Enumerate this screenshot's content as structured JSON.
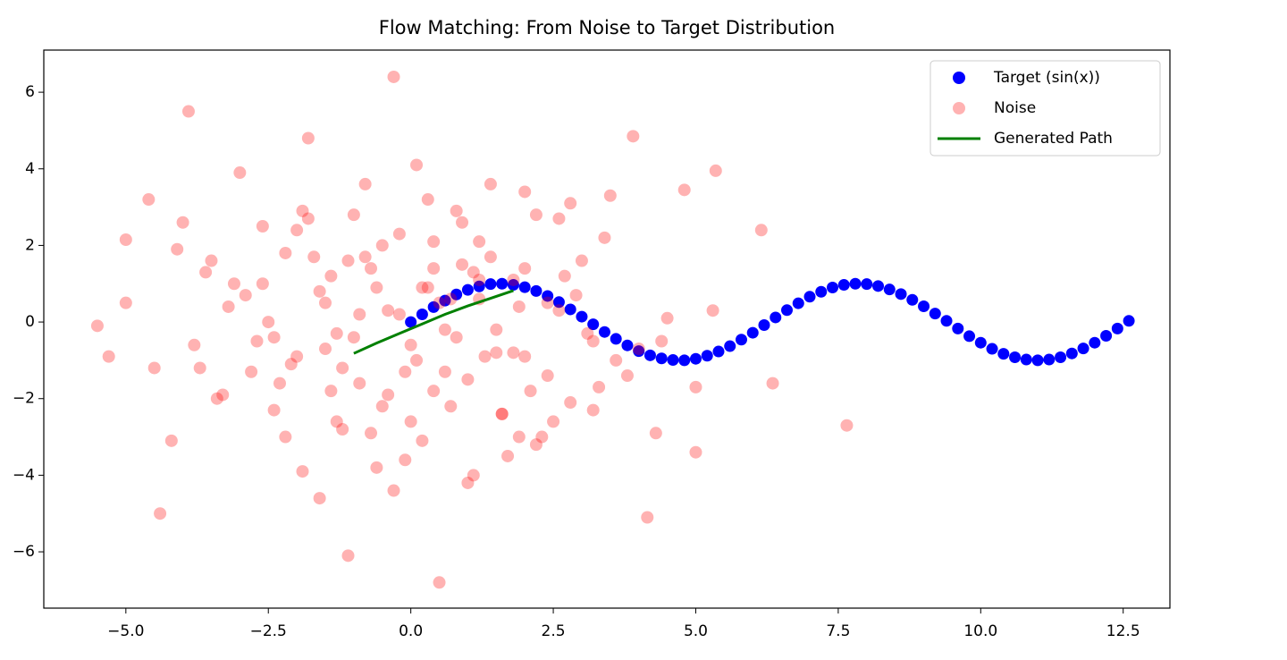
{
  "chart_data": {
    "type": "scatter",
    "title": "Flow Matching: From Noise to Target Distribution",
    "xlim": [
      -6.44,
      13.32
    ],
    "ylim": [
      -7.47,
      7.1
    ],
    "xticks": [
      {
        "value": -5,
        "label": "−5.0"
      },
      {
        "value": -2.5,
        "label": "−2.5"
      },
      {
        "value": 0,
        "label": "0.0"
      },
      2.5,
      {
        "value": 5,
        "label": "5.0"
      },
      7.5,
      {
        "value": 10,
        "label": "10.0"
      },
      12.5
    ],
    "yticks": [
      {
        "value": -6,
        "label": "−6"
      },
      {
        "value": -4,
        "label": "−4"
      },
      {
        "value": -2,
        "label": "−2"
      },
      0,
      2,
      4,
      6
    ],
    "grid": false,
    "legend": "upper right",
    "series": [
      {
        "name": "Target (sin(x))",
        "type": "scatter",
        "color": "#0000ff",
        "alpha": 1,
        "x": [
          0,
          0.2,
          0.4,
          0.6,
          0.8,
          1.0,
          1.2,
          1.4,
          1.6,
          1.8,
          2.0,
          2.2,
          2.4,
          2.6,
          2.8,
          3.0,
          3.2,
          3.4,
          3.6,
          3.8,
          4.0,
          4.2,
          4.4,
          4.6,
          4.8,
          5.0,
          5.2,
          5.4,
          5.6,
          5.8,
          6.0,
          6.2,
          6.4,
          6.6,
          6.8,
          7.0,
          7.2,
          7.4,
          7.6,
          7.8,
          8.0,
          8.2,
          8.4,
          8.6,
          8.8,
          9.0,
          9.2,
          9.4,
          9.6,
          9.8,
          10.0,
          10.2,
          10.4,
          10.6,
          10.8,
          11.0,
          11.2,
          11.4,
          11.6,
          11.8,
          12.0,
          12.2,
          12.4,
          12.6
        ],
        "y": [
          0,
          0.2,
          0.39,
          0.56,
          0.72,
          0.84,
          0.93,
          0.99,
          1.0,
          0.97,
          0.91,
          0.81,
          0.68,
          0.52,
          0.33,
          0.14,
          -0.06,
          -0.26,
          -0.44,
          -0.61,
          -0.76,
          -0.87,
          -0.95,
          -0.99,
          -1.0,
          -0.96,
          -0.88,
          -0.77,
          -0.63,
          -0.46,
          -0.28,
          -0.08,
          0.12,
          0.31,
          0.49,
          0.66,
          0.79,
          0.9,
          0.97,
          1.0,
          0.99,
          0.94,
          0.85,
          0.73,
          0.58,
          0.41,
          0.22,
          0.03,
          -0.17,
          -0.37,
          -0.54,
          -0.7,
          -0.83,
          -0.92,
          -0.98,
          -1.0,
          -0.98,
          -0.92,
          -0.82,
          -0.69,
          -0.54,
          -0.36,
          -0.17,
          0.03
        ]
      },
      {
        "name": "Noise",
        "type": "scatter",
        "color": "#ff0000",
        "alpha": 0.3,
        "x": [
          -5.5,
          -5.3,
          -3.9,
          -0.3,
          0.5,
          -1.1,
          7.65,
          6.15,
          6.35,
          4.15,
          5.35,
          3.9,
          -4.4,
          -4.6,
          -5.0,
          -5.0,
          4.8,
          5.0,
          5.0,
          5.3,
          -4.2,
          -4.0,
          -3.8,
          -3.6,
          -3.4,
          -3.2,
          -3.0,
          -2.8,
          -2.6,
          -2.4,
          -2.2,
          -2.0,
          -1.8,
          -1.6,
          -1.4,
          -1.2,
          -1.0,
          -0.8,
          -0.6,
          -0.4,
          -0.2,
          0.0,
          0.2,
          0.4,
          0.6,
          0.8,
          1.0,
          1.2,
          1.4,
          1.6,
          1.8,
          2.0,
          2.2,
          2.4,
          2.6,
          2.8,
          3.0,
          3.2,
          3.4,
          3.6,
          -2.1,
          -1.7,
          -1.3,
          -0.9,
          -0.5,
          -0.1,
          0.3,
          0.7,
          1.1,
          1.5,
          1.9,
          2.3,
          2.7,
          3.1,
          -2.5,
          -1.5,
          -0.7,
          0.1,
          0.9,
          1.7,
          -3.5,
          -2.9,
          -2.3,
          -1.9,
          -1.1,
          -0.3,
          0.5,
          1.3,
          2.1,
          2.9,
          -1.6,
          -1.2,
          -0.8,
          -0.4,
          0.0,
          0.4,
          0.8,
          1.2,
          1.6,
          2.0,
          -2.7,
          -2.0,
          -1.4,
          -0.6,
          0.2,
          1.0,
          1.8,
          2.6,
          3.3,
          4.0,
          -1.9,
          -1.0,
          -0.2,
          0.6,
          1.4,
          2.2,
          -3.1,
          -2.4,
          3.5,
          4.3,
          -4.5,
          -4.1,
          -3.7,
          4.4,
          4.5,
          3.8,
          -0.9,
          0.3,
          1.1,
          2.5,
          -1.5,
          -0.5,
          0.7,
          1.5,
          -2.6,
          2.8,
          -3.3,
          3.2,
          -0.1,
          0.9,
          -1.3,
          -0.7,
          0.1,
          1.9,
          2.4,
          -2.2,
          -1.8,
          0.4,
          1.2,
          2.0
        ],
        "y": [
          -0.1,
          -0.9,
          5.5,
          6.4,
          -6.8,
          -6.1,
          -2.7,
          2.4,
          -1.6,
          -5.1,
          3.95,
          4.85,
          -5.0,
          3.2,
          2.15,
          0.5,
          3.45,
          -1.7,
          -3.4,
          0.3,
          -3.1,
          2.6,
          -0.6,
          1.3,
          -2.0,
          0.4,
          3.9,
          -1.3,
          2.5,
          -2.3,
          1.8,
          -0.9,
          4.8,
          -4.6,
          1.2,
          -2.8,
          -0.4,
          3.6,
          0.9,
          -1.9,
          2.3,
          -0.6,
          -3.1,
          1.4,
          -0.2,
          2.9,
          -1.5,
          0.6,
          3.6,
          -2.4,
          1.1,
          -0.9,
          2.8,
          -1.4,
          0.3,
          -2.1,
          1.6,
          -0.5,
          2.2,
          -1.0,
          -1.1,
          1.7,
          -2.6,
          0.2,
          2.0,
          -1.3,
          0.9,
          -2.2,
          1.3,
          -0.2,
          0.4,
          -3.0,
          1.2,
          -0.3,
          0.0,
          -0.7,
          -2.9,
          4.1,
          2.6,
          -3.5,
          1.6,
          0.7,
          -1.6,
          2.9,
          1.6,
          -4.4,
          0.5,
          -0.9,
          -1.8,
          0.7,
          0.8,
          -1.2,
          1.7,
          0.3,
          -2.6,
          2.1,
          -0.4,
          1.1,
          -2.4,
          3.4,
          -0.5,
          2.4,
          -1.8,
          -3.8,
          0.9,
          -4.2,
          -0.8,
          2.7,
          -1.7,
          -0.7,
          -3.9,
          2.8,
          0.2,
          -1.3,
          1.7,
          -3.2,
          1.0,
          -0.4,
          3.3,
          -2.9,
          -1.2,
          1.9,
          -1.2,
          -0.5,
          0.1,
          -1.4,
          -1.6,
          3.2,
          -4.0,
          -2.6,
          0.5,
          -2.2,
          0.6,
          -0.8,
          1.0,
          3.1,
          -1.9,
          -2.3,
          -3.6,
          1.5,
          -0.3,
          1.4,
          -1.0,
          -3.0,
          0.5,
          -3.0,
          2.7,
          -1.8,
          2.1,
          1.4
        ]
      },
      {
        "name": "Generated Path",
        "type": "line",
        "color": "#008000",
        "x": [
          -1.0,
          -0.6,
          -0.2,
          0.2,
          0.6,
          1.0,
          1.4,
          1.8
        ],
        "y": [
          -0.82,
          -0.55,
          -0.3,
          -0.05,
          0.2,
          0.42,
          0.62,
          0.82
        ]
      }
    ]
  }
}
